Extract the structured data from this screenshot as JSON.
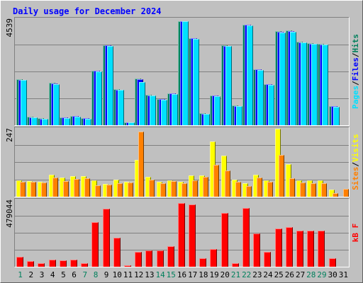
{
  "title": "Daily usage for December 2024",
  "colors": {
    "background": "#c0c0c0",
    "title": "#0000ff",
    "hits": "#00805c",
    "files": "#0000ff",
    "pages": "#00e0ff",
    "visits": "#ffff00",
    "sites": "#ff8000",
    "kbytes": "#ff0000",
    "weekend_day": "#00805c",
    "weekday": "#000000"
  },
  "icons": [
    "outer-bevel-frame"
  ],
  "chart_data": [
    {
      "type": "bar",
      "title": "Daily usage for December 2024",
      "panel": "hits-files-pages",
      "categories": [
        "1",
        "2",
        "3",
        "4",
        "5",
        "6",
        "7",
        "8",
        "9",
        "10",
        "11",
        "12",
        "13",
        "14",
        "15",
        "16",
        "17",
        "18",
        "19",
        "20",
        "21",
        "22",
        "23",
        "24",
        "25",
        "26",
        "27",
        "28",
        "29",
        "30",
        "31"
      ],
      "ymax_label": "4539",
      "ylim": [
        0,
        4539
      ],
      "grid": true,
      "legend": "right side, vertical",
      "legend_labels": [
        "Pages",
        "/",
        "Files",
        "/",
        "Hits"
      ],
      "series": [
        {
          "name": "Hits",
          "values": [
            1950,
            350,
            290,
            1790,
            330,
            390,
            310,
            2310,
            3380,
            1530,
            130,
            1980,
            1290,
            1110,
            1350,
            4390,
            3680,
            500,
            1260,
            3380,
            840,
            4250,
            2370,
            1740,
            3960,
            3990,
            3510,
            3460,
            3420,
            810,
            0
          ]
        },
        {
          "name": "Files",
          "values": [
            1920,
            340,
            280,
            1760,
            320,
            380,
            300,
            2300,
            3360,
            1500,
            120,
            1950,
            1260,
            1090,
            1330,
            4380,
            3660,
            490,
            1240,
            3350,
            820,
            4230,
            2350,
            1720,
            3930,
            3960,
            3490,
            3440,
            3400,
            800,
            0
          ]
        },
        {
          "name": "Pages",
          "values": [
            1900,
            330,
            270,
            1740,
            300,
            370,
            280,
            2280,
            3340,
            1480,
            110,
            1810,
            1240,
            1070,
            1320,
            4390,
            3640,
            470,
            1220,
            3330,
            800,
            4220,
            2330,
            1690,
            3920,
            3940,
            3480,
            3420,
            3390,
            790,
            0
          ]
        }
      ]
    },
    {
      "type": "bar",
      "panel": "visits-sites",
      "categories": [
        "1",
        "2",
        "3",
        "4",
        "5",
        "6",
        "7",
        "8",
        "9",
        "10",
        "11",
        "12",
        "13",
        "14",
        "15",
        "16",
        "17",
        "18",
        "19",
        "20",
        "21",
        "22",
        "23",
        "24",
        "25",
        "26",
        "27",
        "28",
        "29",
        "30",
        "31"
      ],
      "ymax_label": "247",
      "ylim": [
        0,
        247
      ],
      "grid": true,
      "legend": "right side, vertical",
      "legend_labels": [
        "Sites",
        "/",
        "Visits"
      ],
      "series": [
        {
          "name": "Visits",
          "values": [
            58,
            56,
            53,
            79,
            67,
            73,
            72,
            59,
            46,
            61,
            53,
            130,
            71,
            54,
            59,
            52,
            75,
            75,
            196,
            146,
            61,
            48,
            78,
            57,
            241,
            116,
            58,
            59,
            57,
            26,
            0
          ]
        },
        {
          "name": "Sites",
          "values": [
            54,
            52,
            50,
            68,
            56,
            64,
            65,
            41,
            42,
            49,
            50,
            232,
            61,
            48,
            56,
            48,
            58,
            70,
            114,
            93,
            52,
            39,
            68,
            54,
            148,
            66,
            51,
            48,
            47,
            13,
            27
          ]
        }
      ]
    },
    {
      "type": "bar",
      "panel": "kbytes",
      "categories": [
        "1",
        "2",
        "3",
        "4",
        "5",
        "6",
        "7",
        "8",
        "9",
        "10",
        "11",
        "12",
        "13",
        "14",
        "15",
        "16",
        "17",
        "18",
        "19",
        "20",
        "21",
        "22",
        "23",
        "24",
        "25",
        "26",
        "27",
        "28",
        "29",
        "30",
        "31"
      ],
      "ymax_label": "479044",
      "ylim": [
        0,
        479044
      ],
      "grid": true,
      "legend": "right side, vertical",
      "legend_labels": [
        "kB F"
      ],
      "series": [
        {
          "name": "kB F",
          "values": [
            70000,
            42000,
            25000,
            52000,
            45000,
            49000,
            25000,
            312000,
            411000,
            205000,
            8000,
            106000,
            116000,
            116000,
            143000,
            449000,
            439000,
            60000,
            127000,
            381000,
            25000,
            413000,
            234000,
            105000,
            269000,
            279000,
            256000,
            256000,
            256000,
            60000,
            0
          ]
        }
      ]
    }
  ],
  "day_labels": [
    "1",
    "2",
    "3",
    "4",
    "5",
    "6",
    "7",
    "8",
    "9",
    "10",
    "11",
    "12",
    "13",
    "14",
    "15",
    "16",
    "17",
    "18",
    "19",
    "20",
    "21",
    "22",
    "23",
    "24",
    "25",
    "26",
    "27",
    "28",
    "29",
    "30",
    "31"
  ],
  "weekend_days": [
    "1",
    "7",
    "8",
    "14",
    "15",
    "21",
    "22",
    "28",
    "29"
  ]
}
